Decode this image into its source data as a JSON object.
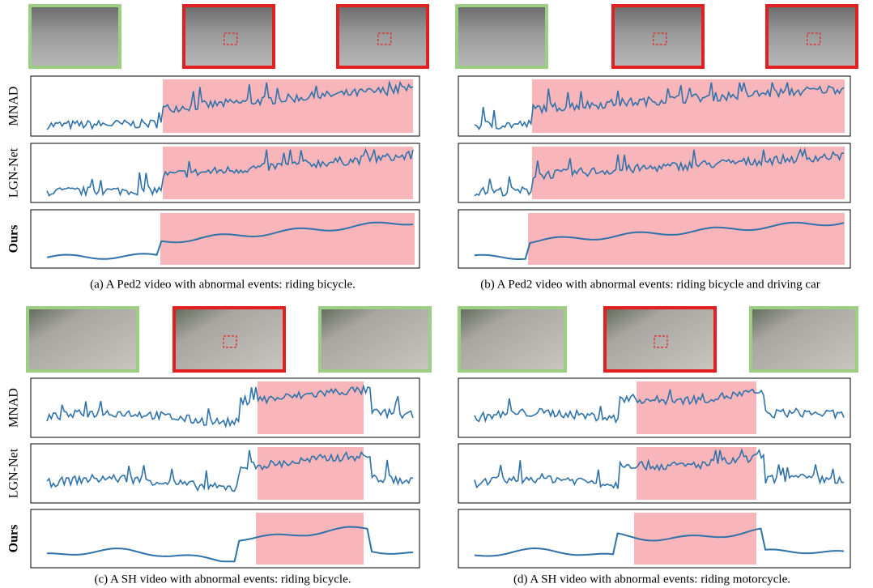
{
  "panels": [
    {
      "caption": "(a) A Ped2 video with abnormal events: riding bicycle.",
      "row_labels": [
        "MNAD",
        "LGN-Net",
        "Ours"
      ]
    },
    {
      "caption": "(b) A Ped2 video with abnormal events: riding bicycle and driving car"
    },
    {
      "caption": "(c) A SH video with abnormal events: riding bicycle.",
      "row_labels": [
        "MNAD",
        "LGN-Net",
        "Ours"
      ]
    },
    {
      "caption": "(d) A SH video with abnormal events: riding motorcycle."
    }
  ]
}
